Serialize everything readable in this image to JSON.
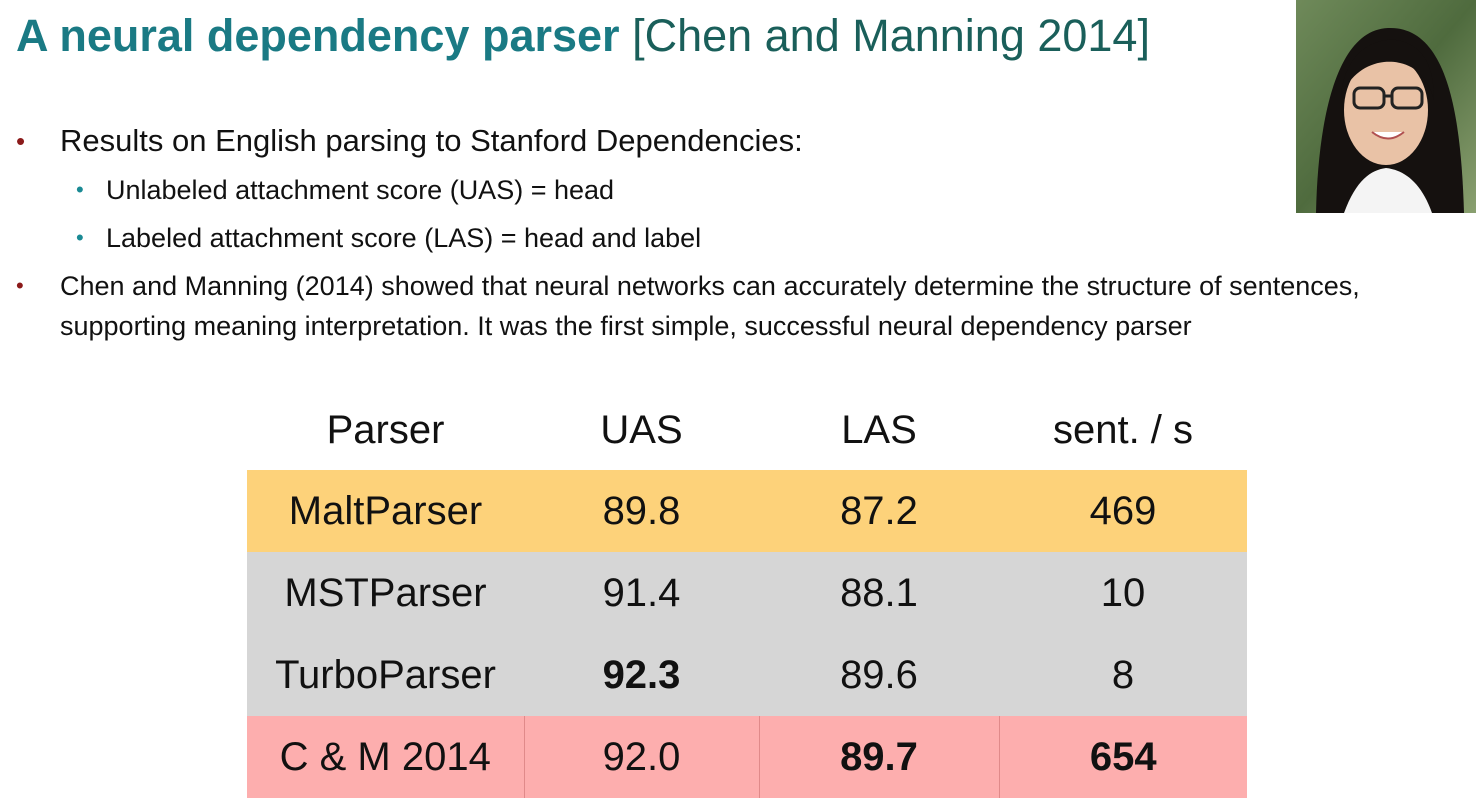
{
  "title": {
    "main": "A neural dependency parser",
    "citation": "[Chen and Manning 2014]"
  },
  "bullets": {
    "b1": "Results on English parsing to Stanford Dependencies:",
    "b1_sub": [
      "Unlabeled attachment score (UAS) = head",
      "Labeled attachment score (LAS) = head and label"
    ],
    "b2": "Chen and Manning (2014) showed that neural networks can accurately determine the structure of sentences, supporting meaning interpretation. It was the first simple, successful neural dependency parser"
  },
  "table": {
    "headers": [
      "Parser",
      "UAS",
      "LAS",
      "sent. / s"
    ],
    "rows": [
      {
        "parser": "MaltParser",
        "uas": "89.8",
        "las": "87.2",
        "speed": "469"
      },
      {
        "parser": "MSTParser",
        "uas": "91.4",
        "las": "88.1",
        "speed": "10"
      },
      {
        "parser": "TurboParser",
        "uas": "92.3",
        "las": "89.6",
        "speed": "8"
      },
      {
        "parser": "C & M 2014",
        "uas": "92.0",
        "las": "89.7",
        "speed": "654"
      }
    ]
  },
  "colors": {
    "title": "#1a7a84",
    "malt_row": "#fdd27a",
    "gray_rows": "#d6d6d6",
    "cm_row": "#fdaeae"
  }
}
